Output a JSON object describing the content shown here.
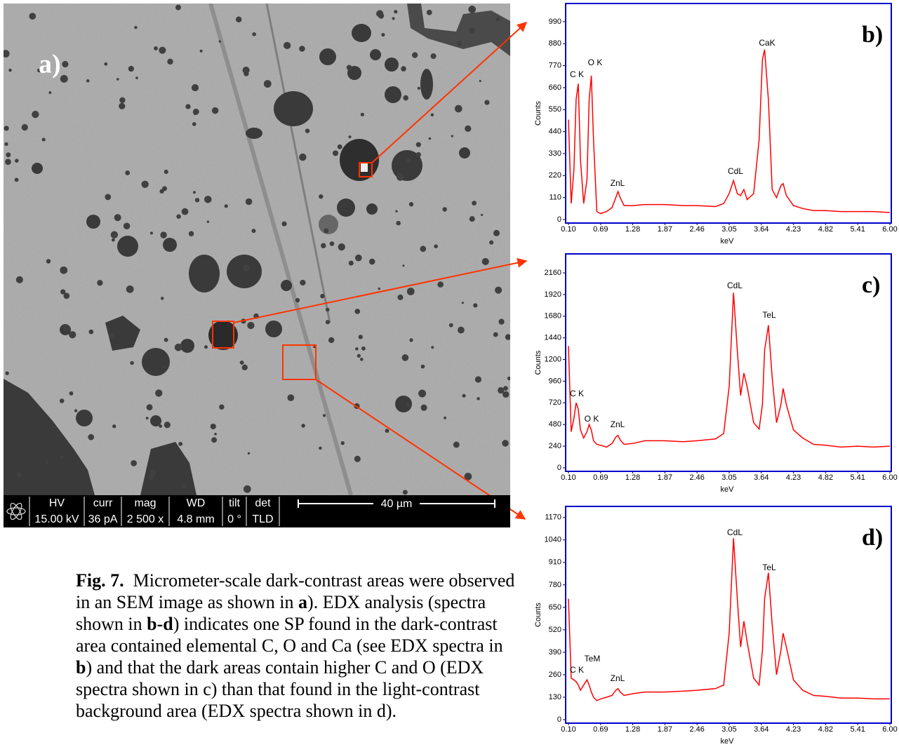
{
  "sem": {
    "label": "a)",
    "info": [
      {
        "label": "HV",
        "value": "15.00 kV"
      },
      {
        "label": "curr",
        "value": "36 pA"
      },
      {
        "label": "mag",
        "value": "2 500 x"
      },
      {
        "label": "WD",
        "value": "4.8 mm"
      },
      {
        "label": "tilt",
        "value": "0 °"
      },
      {
        "label": "det",
        "value": "TLD"
      }
    ],
    "scale_bar": "40 µm"
  },
  "chart_data": [
    {
      "type": "line",
      "title": "b)",
      "xlabel": "keV",
      "ylabel": "Counts",
      "frame_color": "#0000cc",
      "x": [
        0.1,
        0.15,
        0.2,
        0.24,
        0.28,
        0.32,
        0.38,
        0.44,
        0.48,
        0.52,
        0.56,
        0.62,
        0.69,
        0.8,
        0.9,
        0.97,
        1.01,
        1.05,
        1.12,
        1.28,
        1.5,
        1.87,
        2.2,
        2.46,
        2.8,
        2.95,
        3.05,
        3.13,
        3.2,
        3.26,
        3.32,
        3.38,
        3.5,
        3.6,
        3.66,
        3.7,
        3.77,
        3.84,
        3.92,
        4.0,
        4.04,
        4.1,
        4.23,
        4.4,
        4.6,
        4.82,
        5.1,
        5.41,
        5.7,
        6.0
      ],
      "series": [
        {
          "color": "#ff0000",
          "values": [
            500,
            80,
            250,
            600,
            680,
            300,
            80,
            200,
            600,
            720,
            400,
            40,
            30,
            40,
            60,
            110,
            140,
            110,
            70,
            70,
            75,
            75,
            70,
            70,
            65,
            80,
            130,
            195,
            130,
            120,
            150,
            100,
            130,
            400,
            800,
            850,
            600,
            150,
            110,
            170,
            180,
            120,
            70,
            55,
            45,
            45,
            40,
            40,
            40,
            35
          ]
        }
      ],
      "xlim": [
        0.1,
        6
      ],
      "xticks": [
        {
          "value": 0.1,
          "label": "0.10"
        },
        0.69,
        1.28,
        1.87,
        2.46,
        3.05,
        3.64,
        4.23,
        4.82,
        5.41,
        {
          "value": 6,
          "label": "6.00"
        }
      ],
      "ylim": [
        0,
        1081
      ],
      "yticks": [
        0,
        110,
        220,
        330,
        440,
        550,
        660,
        770,
        880,
        990
      ],
      "annotations": [
        "C K",
        "O K",
        "ZnL",
        "CdL",
        "CaK"
      ]
    },
    {
      "type": "line",
      "title": "c)",
      "xlabel": "keV",
      "ylabel": "Counts",
      "frame_color": "#0000cc",
      "x": [
        0.1,
        0.15,
        0.2,
        0.24,
        0.28,
        0.32,
        0.38,
        0.44,
        0.48,
        0.52,
        0.56,
        0.62,
        0.69,
        0.8,
        0.9,
        0.97,
        1.01,
        1.05,
        1.12,
        1.28,
        1.5,
        1.87,
        2.2,
        2.46,
        2.8,
        2.95,
        3.05,
        3.13,
        3.2,
        3.26,
        3.32,
        3.38,
        3.5,
        3.6,
        3.66,
        3.7,
        3.77,
        3.84,
        3.92,
        4.0,
        4.04,
        4.1,
        4.23,
        4.4,
        4.6,
        4.82,
        5.1,
        5.41,
        5.7,
        6.0
      ],
      "series": [
        {
          "color": "#ff0000",
          "values": [
            1350,
            400,
            550,
            720,
            650,
            420,
            330,
            400,
            480,
            420,
            300,
            260,
            250,
            230,
            270,
            340,
            360,
            310,
            260,
            270,
            300,
            300,
            290,
            300,
            320,
            380,
            900,
            1940,
            1300,
            800,
            1050,
            900,
            500,
            430,
            700,
            1300,
            1580,
            1000,
            500,
            700,
            880,
            700,
            420,
            330,
            260,
            250,
            230,
            240,
            230,
            240
          ]
        }
      ],
      "xlim": [
        0.1,
        6
      ],
      "xticks": [
        {
          "value": 0.1,
          "label": "0.10"
        },
        0.69,
        1.28,
        1.87,
        2.46,
        3.05,
        3.64,
        4.23,
        4.82,
        5.41,
        {
          "value": 6,
          "label": "6.00"
        }
      ],
      "ylim": [
        0,
        2370
      ],
      "yticks": [
        0,
        240,
        480,
        720,
        960,
        1200,
        1440,
        1680,
        1920,
        2160
      ],
      "annotations": [
        "C K",
        "O K",
        "ZnL",
        "CdL",
        "TeL"
      ]
    },
    {
      "type": "line",
      "title": "d)",
      "xlabel": "keV",
      "ylabel": "Counts",
      "frame_color": "#0000cc",
      "x": [
        0.1,
        0.15,
        0.2,
        0.24,
        0.28,
        0.32,
        0.38,
        0.44,
        0.48,
        0.52,
        0.56,
        0.62,
        0.69,
        0.8,
        0.9,
        0.97,
        1.01,
        1.05,
        1.12,
        1.28,
        1.5,
        1.87,
        2.2,
        2.46,
        2.8,
        2.95,
        3.05,
        3.13,
        3.2,
        3.26,
        3.32,
        3.38,
        3.5,
        3.6,
        3.66,
        3.7,
        3.77,
        3.84,
        3.92,
        4.0,
        4.04,
        4.1,
        4.23,
        4.4,
        4.6,
        4.82,
        5.1,
        5.41,
        5.7,
        6.0
      ],
      "series": [
        {
          "color": "#ff0000",
          "values": [
            700,
            240,
            230,
            220,
            200,
            170,
            200,
            230,
            200,
            160,
            130,
            110,
            120,
            130,
            140,
            170,
            180,
            160,
            140,
            150,
            160,
            160,
            165,
            170,
            180,
            200,
            500,
            1050,
            700,
            420,
            570,
            450,
            240,
            200,
            400,
            700,
            850,
            550,
            260,
            400,
            500,
            420,
            230,
            170,
            140,
            135,
            125,
            125,
            120,
            120
          ]
        }
      ],
      "xlim": [
        0.1,
        6
      ],
      "xticks": [
        {
          "value": 0.1,
          "label": "0.10"
        },
        0.69,
        1.28,
        1.87,
        2.46,
        3.05,
        3.64,
        4.23,
        4.82,
        5.41,
        {
          "value": 6,
          "label": "6.00"
        }
      ],
      "ylim": [
        0,
        1234
      ],
      "yticks": [
        0,
        130,
        260,
        390,
        520,
        650,
        780,
        910,
        1040,
        1170
      ],
      "annotations": [
        "TeM",
        "C K",
        "ZnL",
        "CdL",
        "TeL"
      ]
    }
  ],
  "caption": {
    "label": "Fig. 7.",
    "parts": [
      {
        "text": "Micrometer-scale dark-contrast areas were observed in an SEM image as shown in "
      },
      {
        "text": "a",
        "bold": true
      },
      {
        "text": "). EDX analysis (spectra shown in "
      },
      {
        "text": "b-d",
        "bold": true
      },
      {
        "text": ") indicates one SP found in the dark-contrast area contained elemental C, O and Ca (see EDX spectra in "
      },
      {
        "text": "b",
        "bold": true
      },
      {
        "text": ") and that the dark areas contain higher C and O (EDX spectra shown in c) than that found in the light-contrast background area (EDX spectra shown in d)."
      }
    ]
  }
}
